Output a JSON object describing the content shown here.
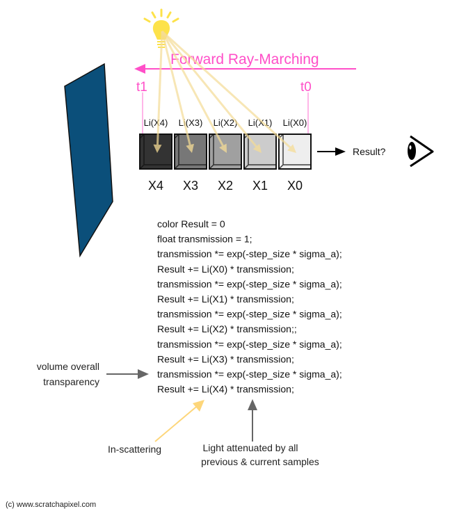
{
  "title": "Forward Ray-Marching",
  "markers": {
    "t1": "t1",
    "t0": "t0"
  },
  "samples": [
    {
      "label": "X4",
      "li": "Li(X4)",
      "shade": "#333333"
    },
    {
      "label": "X3",
      "li": "Li(X3)",
      "shade": "#777777"
    },
    {
      "label": "X2",
      "li": "Li(X2)",
      "shade": "#a0a0a0"
    },
    {
      "label": "X1",
      "li": "Li(X1)",
      "shade": "#cccccc"
    },
    {
      "label": "X0",
      "li": "Li(X0)",
      "shade": "#eeeeee"
    }
  ],
  "result_label": "Result?",
  "code": [
    "color Result = 0",
    "float transmission = 1;",
    "transmission *= exp(-step_size * sigma_a);",
    "Result += Li(X0) * transmission;",
    "transmission *= exp(-step_size * sigma_a);",
    "Result += Li(X1) * transmission;",
    "transmission *= exp(-step_size * sigma_a);",
    "Result += Li(X2) * transmission;;",
    "transmission *= exp(-step_size * sigma_a);",
    "Result += Li(X3) * transmission;",
    "transmission *= exp(-step_size * sigma_a);",
    "Result += Li(X4) * transmission;"
  ],
  "annotations": {
    "transparency": [
      "volume overall",
      "transparency"
    ],
    "in_scattering": "In-scattering",
    "attenuated": [
      "Light attenuated by all",
      "previous & current samples"
    ]
  },
  "copyright": "(c) www.scratchapixel.com",
  "colors": {
    "accent": "#ff4fc8",
    "light": "#fde24a",
    "ray": "#f5dc96",
    "panel": "#0b4f7a",
    "arrow": "#666666"
  },
  "icons": [
    "light-bulb-icon",
    "eye-icon"
  ]
}
